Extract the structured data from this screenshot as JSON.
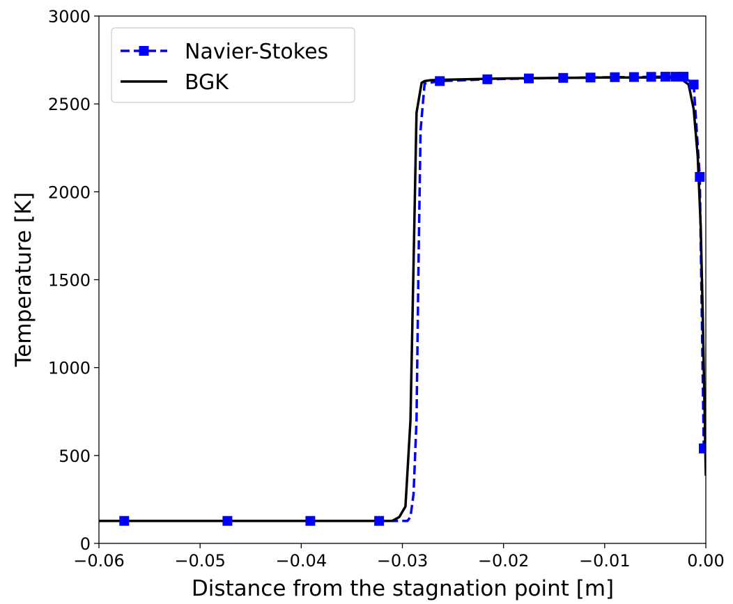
{
  "chart_data": {
    "type": "line",
    "title": "",
    "xlabel": "Distance from the stagnation point [m]",
    "ylabel": "Temperature [K]",
    "xlim": [
      -0.06,
      0.0
    ],
    "ylim": [
      0,
      3000
    ],
    "x_ticks": [
      -0.06,
      -0.05,
      -0.04,
      -0.03,
      -0.02,
      -0.01,
      0.0
    ],
    "x_tick_labels": [
      "−0.06",
      "−0.05",
      "−0.04",
      "−0.03",
      "−0.02",
      "−0.01",
      "0.00"
    ],
    "y_ticks": [
      0,
      500,
      1000,
      1500,
      2000,
      2500,
      3000
    ],
    "y_tick_labels": [
      "0",
      "500",
      "1000",
      "1500",
      "2000",
      "2500",
      "3000"
    ],
    "grid": false,
    "legend_position": "top-left",
    "series": [
      {
        "name": "Navier-Stokes",
        "color": "#0000ff",
        "style": "dashed",
        "marker": "square",
        "x": [
          -0.0575,
          -0.0473,
          -0.0391,
          -0.0323,
          -0.0295,
          -0.0292,
          -0.0289,
          -0.0286,
          -0.0284,
          -0.0282,
          -0.0278,
          -0.0263,
          -0.0216,
          -0.0175,
          -0.0141,
          -0.0114,
          -0.009,
          -0.0071,
          -0.0054,
          -0.004,
          -0.003,
          -0.0022,
          -0.0012,
          -0.0006,
          -0.0002,
          0.0
        ],
        "y": [
          128,
          128,
          128,
          128,
          128,
          150,
          280,
          700,
          1600,
          2350,
          2615,
          2630,
          2640,
          2645,
          2648,
          2650,
          2652,
          2653,
          2654,
          2655,
          2655,
          2655,
          2610,
          2085,
          540,
          540
        ],
        "marker_indices": [
          0,
          1,
          2,
          3,
          11,
          12,
          13,
          14,
          15,
          16,
          17,
          18,
          19,
          20,
          21,
          22,
          23,
          24
        ]
      },
      {
        "name": "BGK",
        "color": "#000000",
        "style": "solid",
        "marker": "none",
        "x": [
          -0.06,
          -0.031,
          -0.0303,
          -0.0297,
          -0.0292,
          -0.0286,
          -0.0281,
          -0.0278,
          -0.0272,
          -0.0262,
          -0.02,
          -0.01,
          -0.004,
          -0.0025,
          -0.0017,
          -0.0012,
          -0.0008,
          -0.0005,
          -0.0003,
          -0.0001,
          0.0
        ],
        "y": [
          128,
          128,
          150,
          210,
          700,
          2450,
          2620,
          2630,
          2635,
          2637,
          2645,
          2650,
          2650,
          2645,
          2610,
          2470,
          2200,
          1800,
          1300,
          700,
          385
        ]
      }
    ]
  }
}
